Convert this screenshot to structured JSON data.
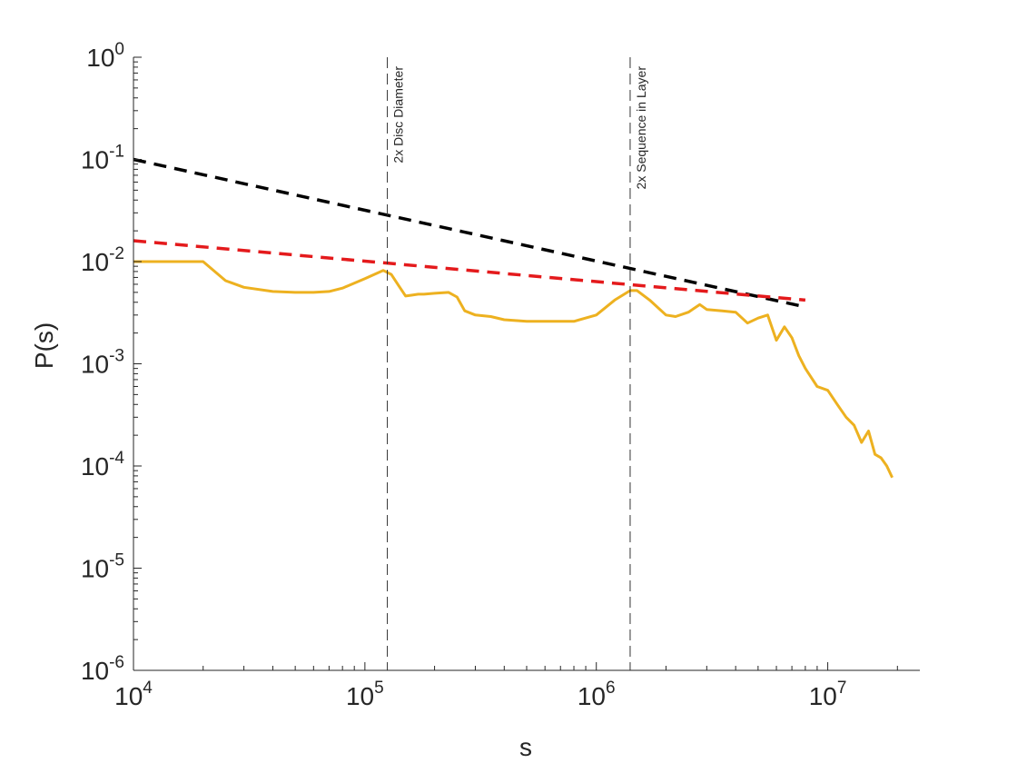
{
  "chart_data": {
    "type": "line",
    "title": "",
    "xlabel": "s",
    "ylabel": "P(s)",
    "xscale": "log",
    "yscale": "log",
    "xlim": [
      10000,
      25000000
    ],
    "ylim": [
      1e-06,
      1
    ],
    "grid": false,
    "legend": "none",
    "x_ticks": [
      {
        "value": 10000,
        "base": "10",
        "exp": "4"
      },
      {
        "value": 100000,
        "base": "10",
        "exp": "5"
      },
      {
        "value": 1000000,
        "base": "10",
        "exp": "6"
      },
      {
        "value": 10000000,
        "base": "10",
        "exp": "7"
      }
    ],
    "y_ticks": [
      {
        "value": 1,
        "base": "10",
        "exp": "0"
      },
      {
        "value": 0.1,
        "base": "10",
        "exp": "-1"
      },
      {
        "value": 0.01,
        "base": "10",
        "exp": "-2"
      },
      {
        "value": 0.001,
        "base": "10",
        "exp": "-3"
      },
      {
        "value": 0.0001,
        "base": "10",
        "exp": "-4"
      },
      {
        "value": 1e-05,
        "base": "10",
        "exp": "-5"
      },
      {
        "value": 1e-06,
        "base": "10",
        "exp": "-6"
      }
    ],
    "series": [
      {
        "color": "#EDB120",
        "style": "solid",
        "x": [
          10000,
          20000,
          25000,
          30000,
          40000,
          50000,
          60000,
          70000,
          80000,
          100000,
          120000,
          130000,
          140000,
          150000,
          160000,
          170000,
          180000,
          200000,
          230000,
          250000,
          270000,
          300000,
          350000,
          400000,
          500000,
          600000,
          700000,
          800000,
          1000000,
          1200000,
          1400000,
          1500000,
          1700000,
          2000000,
          2200000,
          2500000,
          2800000,
          3000000,
          3500000,
          4000000,
          4500000,
          5000000,
          5500000,
          6000000,
          6500000,
          7000000,
          7500000,
          8000000,
          9000000,
          10000000,
          11000000,
          12000000,
          13000000,
          14000000,
          15000000,
          16000000,
          17000000,
          18000000,
          19000000
        ],
        "values": [
          0.01,
          0.01,
          0.0065,
          0.0056,
          0.0051,
          0.005,
          0.005,
          0.0051,
          0.0055,
          0.0068,
          0.0082,
          0.0075,
          0.0058,
          0.0046,
          0.0047,
          0.0048,
          0.0048,
          0.0049,
          0.005,
          0.0045,
          0.0033,
          0.003,
          0.0029,
          0.0027,
          0.0026,
          0.0026,
          0.0026,
          0.0026,
          0.003,
          0.0042,
          0.0052,
          0.0052,
          0.0042,
          0.003,
          0.0029,
          0.0032,
          0.0038,
          0.0034,
          0.0033,
          0.0032,
          0.0025,
          0.0028,
          0.003,
          0.0017,
          0.0023,
          0.0018,
          0.0012,
          0.0009,
          0.0006,
          0.00055,
          0.0004,
          0.0003,
          0.00025,
          0.00017,
          0.00022,
          0.00013,
          0.00012,
          0.0001,
          7.7e-05
        ]
      },
      {
        "color": "#000000",
        "style": "dashed",
        "x": [
          10000,
          8000000
        ],
        "values": [
          0.1,
          0.0036
        ]
      },
      {
        "color": "#e41a1c",
        "style": "dashed",
        "x": [
          10000,
          8000000
        ],
        "values": [
          0.016,
          0.0042
        ]
      }
    ],
    "vlines": [
      {
        "x": 125000,
        "label": "2x Disc Diameter"
      },
      {
        "x": 1400000,
        "label": "2x Sequence in Layer"
      }
    ]
  }
}
